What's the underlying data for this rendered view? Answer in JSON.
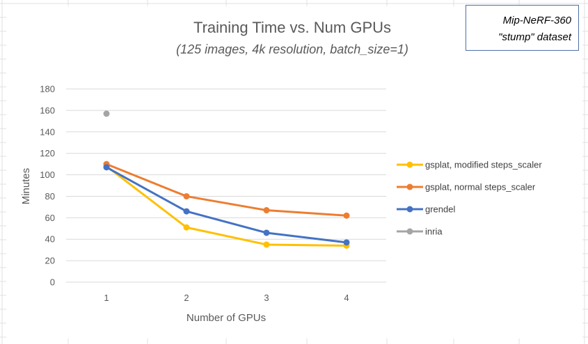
{
  "chart_data": {
    "type": "line",
    "title": "Training Time vs. Num GPUs",
    "subtitle": "(125 images, 4k resolution, batch_size=1)",
    "xlabel": "Number of GPUs",
    "ylabel": "Minutes",
    "categories": [
      "1",
      "2",
      "3",
      "4"
    ],
    "ylim": [
      0,
      180
    ],
    "yticks": [
      0,
      20,
      40,
      60,
      80,
      100,
      120,
      140,
      160,
      180
    ],
    "grid": true,
    "legend_position": "right",
    "series": [
      {
        "name": "gsplat, modified steps_scaler",
        "color": "#FFC000",
        "values": [
          108,
          51,
          35,
          34
        ]
      },
      {
        "name": "gsplat, normal steps_scaler",
        "color": "#ED7D31",
        "values": [
          110,
          80,
          67,
          62
        ]
      },
      {
        "name": "grendel",
        "color": "#4472C4",
        "values": [
          107,
          66,
          46,
          37
        ]
      },
      {
        "name": "inria",
        "color": "#A5A5A5",
        "values": [
          157,
          null,
          null,
          null
        ]
      }
    ]
  },
  "annotation": {
    "line1": "Mip-NeRF-360",
    "line2": "\"stump\" dataset"
  }
}
